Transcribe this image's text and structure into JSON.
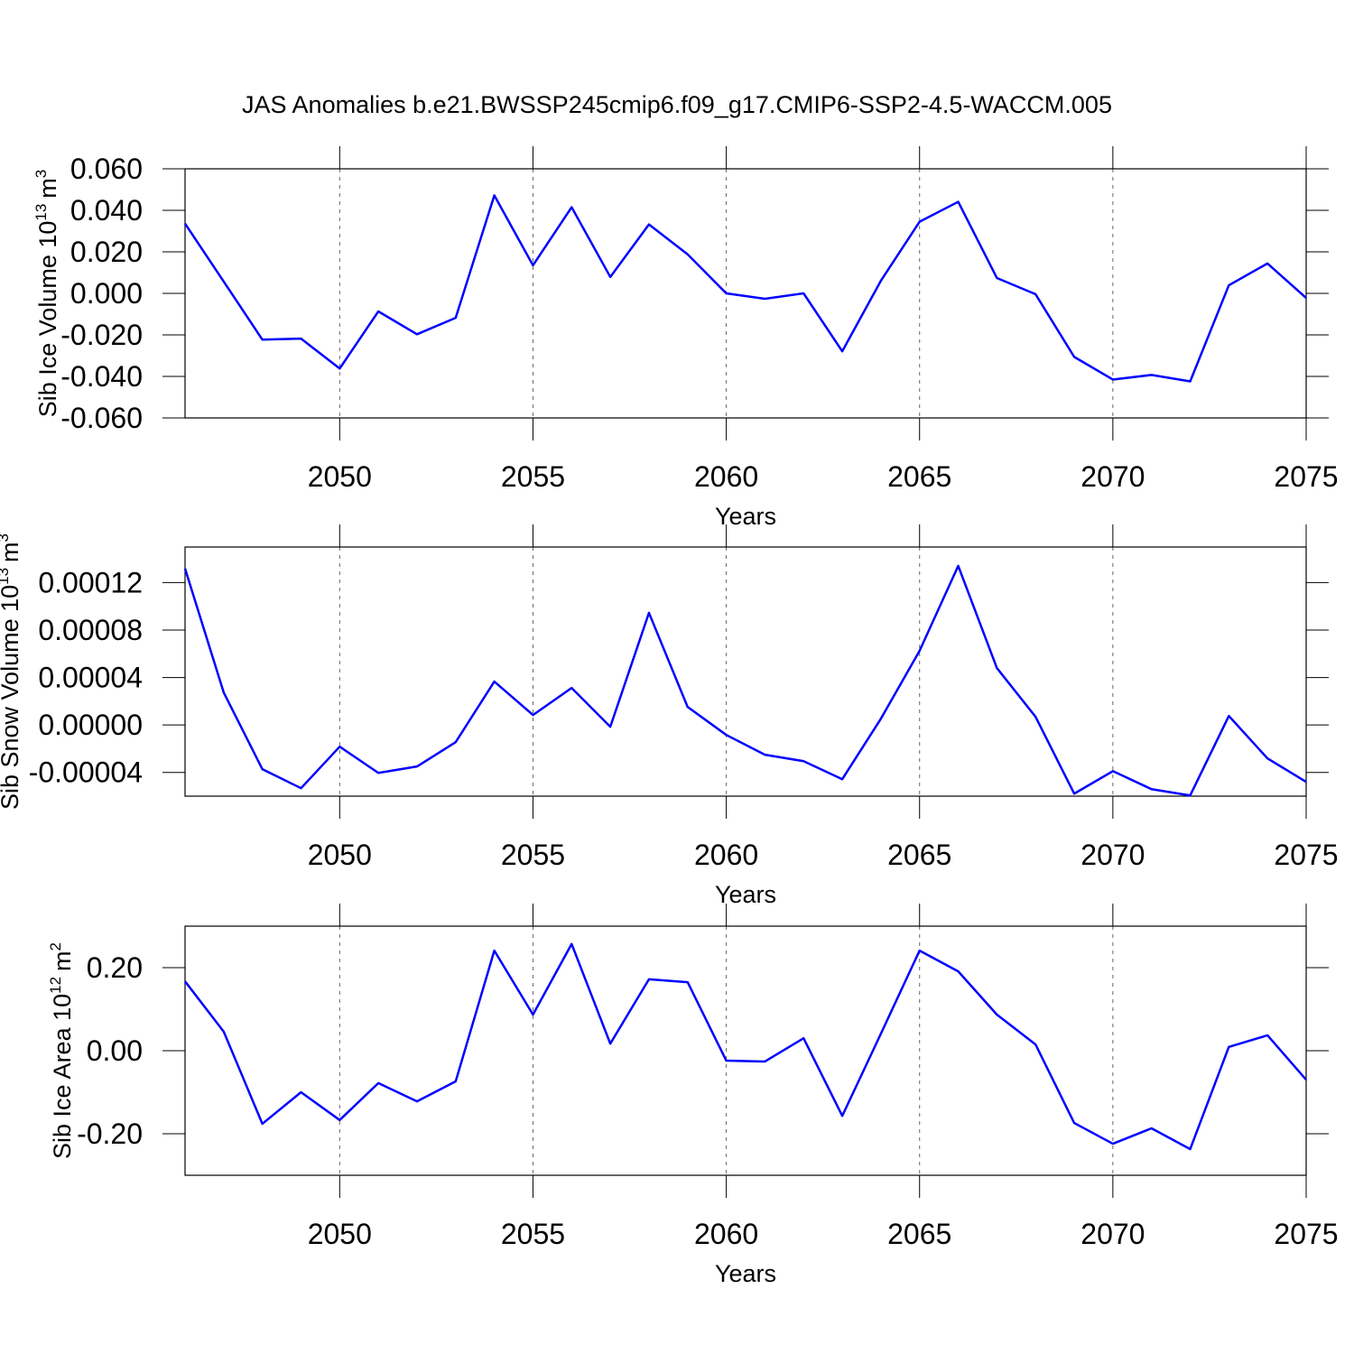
{
  "chart_data": [
    {
      "type": "line",
      "title": "JAS Anomalies b.e21.BWSSP245cmip6.f09_g17.CMIP6-SSP2-4.5-WACCM.005",
      "xlabel": "Years",
      "ylabel": {
        "text": "Sib Ice Volume 10",
        "exp": "13",
        "unit": "m",
        "unit_exp": "3"
      },
      "x": [
        2046,
        2047,
        2048,
        2049,
        2050,
        2051,
        2052,
        2053,
        2054,
        2055,
        2056,
        2057,
        2058,
        2059,
        2060,
        2061,
        2062,
        2063,
        2064,
        2065,
        2066,
        2067,
        2068,
        2069,
        2070,
        2071,
        2072,
        2073,
        2074,
        2075
      ],
      "series": [
        {
          "color": "#0000ff",
          "values": [
            0.0336,
            0.0057,
            -0.0223,
            -0.0218,
            -0.0362,
            -0.0087,
            -0.0197,
            -0.0118,
            0.0472,
            0.0135,
            0.0415,
            0.0079,
            0.0332,
            0.0188,
            0.0,
            -0.0026,
            0.0,
            -0.0279,
            0.0061,
            0.0345,
            0.0441,
            0.0074,
            -0.0004,
            -0.0306,
            -0.0415,
            -0.0393,
            -0.0424,
            0.0039,
            0.0144,
            -0.0022
          ]
        }
      ],
      "xlim": [
        2046,
        2075
      ],
      "xticks": [
        2050,
        2055,
        2060,
        2065,
        2070,
        2075
      ],
      "ylim": [
        -0.06,
        0.06
      ],
      "yticks": [
        {
          "value": -0.06,
          "label": "-0.060"
        },
        {
          "value": -0.04,
          "label": "-0.040"
        },
        {
          "value": -0.02,
          "label": "-0.020"
        },
        {
          "value": 0,
          "label": "0.000"
        },
        {
          "value": 0.02,
          "label": "0.020"
        },
        {
          "value": 0.04,
          "label": "0.040"
        },
        {
          "value": 0.06,
          "label": "0.060"
        }
      ],
      "grid": "x"
    },
    {
      "type": "line",
      "xlabel": "Years",
      "ylabel": {
        "text": "Sib Snow Volume 10",
        "exp": "13",
        "unit": "m",
        "unit_exp": "3"
      },
      "x": [
        2046,
        2047,
        2048,
        2049,
        2050,
        2051,
        2052,
        2053,
        2054,
        2055,
        2056,
        2057,
        2058,
        2059,
        2060,
        2061,
        2062,
        2063,
        2064,
        2065,
        2066,
        2067,
        2068,
        2069,
        2070,
        2071,
        2072,
        2073,
        2074,
        2075
      ],
      "series": [
        {
          "color": "#0000ff",
          "values": [
            0.0001318,
            2.74e-05,
            -3.73e-05,
            -5.33e-05,
            -1.83e-05,
            -4.04e-05,
            -3.5e-05,
            -1.45e-05,
            3.66e-05,
            8.4e-06,
            3.12e-05,
            -1.5e-06,
            9.45e-05,
            1.52e-05,
            -8.4e-06,
            -2.51e-05,
            -3.05e-05,
            -4.57e-05,
            5.3e-06,
            6.25e-05,
            0.0001341,
            4.8e-05,
            6.9e-06,
            -5.79e-05,
            -3.89e-05,
            -5.41e-05,
            -5.94e-05,
            7.6e-06,
            -2.82e-05,
            -4.8e-05
          ]
        }
      ],
      "xlim": [
        2046,
        2075
      ],
      "xticks": [
        2050,
        2055,
        2060,
        2065,
        2070,
        2075
      ],
      "ylim": [
        -6e-05,
        0.00015
      ],
      "yticks": [
        {
          "value": -4e-05,
          "label": "-0.00004"
        },
        {
          "value": 0,
          "label": "0.00000"
        },
        {
          "value": 4e-05,
          "label": "0.00004"
        },
        {
          "value": 8e-05,
          "label": "0.00008"
        },
        {
          "value": 0.00012,
          "label": "0.00012"
        }
      ],
      "grid": "x"
    },
    {
      "type": "line",
      "xlabel": "Years",
      "ylabel": {
        "text": "Sib Ice Area 10",
        "exp": "12",
        "unit": "m",
        "unit_exp": "2"
      },
      "x": [
        2046,
        2047,
        2048,
        2049,
        2050,
        2051,
        2052,
        2053,
        2054,
        2055,
        2056,
        2057,
        2058,
        2059,
        2060,
        2061,
        2062,
        2063,
        2064,
        2065,
        2066,
        2067,
        2068,
        2069,
        2070,
        2071,
        2072,
        2073,
        2074,
        2075
      ],
      "series": [
        {
          "color": "#0000ff",
          "values": [
            0.167,
            0.046,
            -0.176,
            -0.1,
            -0.167,
            -0.078,
            -0.122,
            -0.074,
            0.241,
            0.087,
            0.257,
            0.017,
            0.172,
            0.165,
            -0.024,
            -0.026,
            0.03,
            -0.157,
            0.041,
            0.241,
            0.191,
            0.087,
            0.015,
            -0.174,
            -0.224,
            -0.187,
            -0.237,
            0.009,
            0.037,
            -0.07
          ]
        }
      ],
      "xlim": [
        2046,
        2075
      ],
      "xticks": [
        2050,
        2055,
        2060,
        2065,
        2070,
        2075
      ],
      "ylim": [
        -0.3,
        0.3
      ],
      "yticks": [
        {
          "value": -0.2,
          "label": "-0.20"
        },
        {
          "value": 0,
          "label": "0.00"
        },
        {
          "value": 0.2,
          "label": "0.20"
        }
      ],
      "grid": "x"
    }
  ]
}
